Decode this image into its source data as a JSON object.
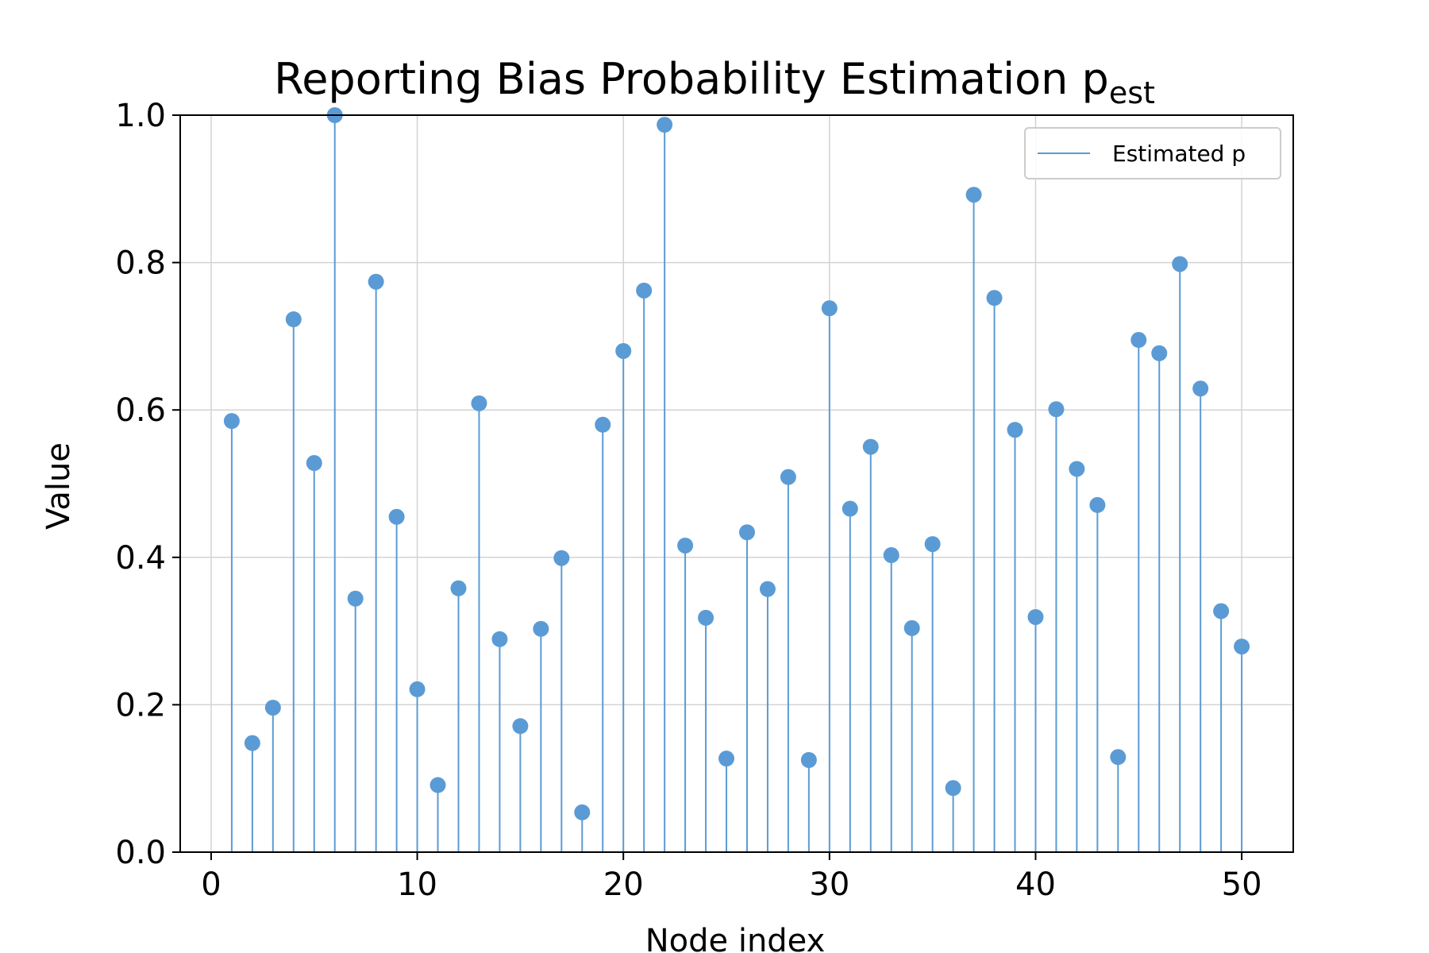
{
  "chart_data": {
    "type": "stem",
    "title": "Reporting Bias Probability Estimation p",
    "title_subscript": "est",
    "xlabel": "Node index",
    "ylabel": "Value",
    "xlim": [
      -1.5,
      52.5
    ],
    "ylim": [
      0.0,
      1.0
    ],
    "xticks": [
      0,
      10,
      20,
      30,
      40,
      50
    ],
    "xtick_labels": [
      "0",
      "10",
      "20",
      "30",
      "40",
      "50"
    ],
    "yticks": [
      0.0,
      0.2,
      0.4,
      0.6,
      0.8,
      1.0
    ],
    "ytick_labels": [
      "0.0",
      "0.2",
      "0.4",
      "0.6",
      "0.8",
      "1.0"
    ],
    "grid": true,
    "legend_position": "top-right",
    "series": [
      {
        "name": "Estimated p",
        "color": "#5b9bd5",
        "x": [
          1,
          2,
          3,
          4,
          5,
          6,
          7,
          8,
          9,
          10,
          11,
          12,
          13,
          14,
          15,
          16,
          17,
          18,
          19,
          20,
          21,
          22,
          23,
          24,
          25,
          26,
          27,
          28,
          29,
          30,
          31,
          32,
          33,
          34,
          35,
          36,
          37,
          38,
          39,
          40,
          41,
          42,
          43,
          44,
          45,
          46,
          47,
          48,
          49,
          50
        ],
        "y": [
          0.585,
          0.148,
          0.196,
          0.723,
          0.528,
          1.0,
          0.344,
          0.774,
          0.455,
          0.221,
          0.091,
          0.358,
          0.609,
          0.289,
          0.171,
          0.303,
          0.399,
          0.054,
          0.58,
          0.68,
          0.762,
          0.987,
          0.416,
          0.318,
          0.127,
          0.434,
          0.357,
          0.509,
          0.125,
          0.738,
          0.466,
          0.55,
          0.403,
          0.304,
          0.418,
          0.087,
          0.892,
          0.752,
          0.573,
          0.319,
          0.601,
          0.52,
          0.471,
          0.129,
          0.695,
          0.677,
          0.798,
          0.629,
          0.327,
          0.279
        ]
      }
    ]
  }
}
